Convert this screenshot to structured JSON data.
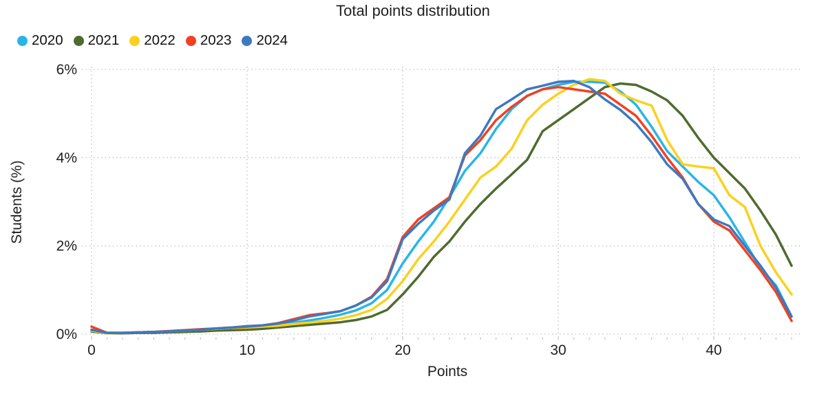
{
  "page": {
    "title": "Total points distribution",
    "background_color": "#ffffff",
    "text_color": "#1f1f1f"
  },
  "chart_data": {
    "type": "line",
    "title": "Total points distribution",
    "xlabel": "Points",
    "ylabel": "Students (%)",
    "xlim": [
      0,
      45
    ],
    "ylim": [
      0,
      6
    ],
    "x_ticks": [
      0,
      10,
      20,
      30,
      40
    ],
    "y_ticks": [
      0,
      2,
      4,
      6
    ],
    "y_tick_labels": [
      "0%",
      "2%",
      "4%",
      "6%"
    ],
    "grid": "dotted",
    "grid_color": "#c4c4c4",
    "legend_position": "top-left",
    "x": [
      0,
      1,
      2,
      3,
      4,
      5,
      6,
      7,
      8,
      9,
      10,
      11,
      12,
      13,
      14,
      15,
      16,
      17,
      18,
      19,
      20,
      21,
      22,
      23,
      24,
      25,
      26,
      27,
      28,
      29,
      30,
      31,
      32,
      33,
      34,
      35,
      36,
      37,
      38,
      39,
      40,
      41,
      42,
      43,
      44,
      45
    ],
    "series": [
      {
        "name": "2020",
        "color": "#29B5E8",
        "values": [
          0.1,
          0.03,
          0.03,
          0.03,
          0.04,
          0.05,
          0.06,
          0.08,
          0.1,
          0.12,
          0.13,
          0.15,
          0.2,
          0.26,
          0.31,
          0.37,
          0.44,
          0.54,
          0.7,
          1.0,
          1.6,
          2.1,
          2.55,
          3.1,
          3.7,
          4.1,
          4.65,
          5.1,
          5.4,
          5.55,
          5.65,
          5.72,
          5.72,
          5.7,
          5.5,
          5.2,
          4.7,
          4.15,
          3.8,
          3.45,
          3.15,
          2.65,
          2.08,
          1.5,
          1.1,
          0.4
        ]
      },
      {
        "name": "2021",
        "color": "#4E6B2F",
        "values": [
          0.06,
          0.02,
          0.02,
          0.03,
          0.03,
          0.04,
          0.05,
          0.06,
          0.08,
          0.09,
          0.1,
          0.12,
          0.15,
          0.18,
          0.21,
          0.24,
          0.27,
          0.32,
          0.4,
          0.55,
          0.9,
          1.3,
          1.75,
          2.1,
          2.55,
          2.95,
          3.3,
          3.62,
          3.95,
          4.6,
          4.85,
          5.1,
          5.35,
          5.6,
          5.68,
          5.65,
          5.5,
          5.3,
          4.95,
          4.45,
          4.0,
          3.65,
          3.3,
          2.8,
          2.25,
          1.55
        ]
      },
      {
        "name": "2022",
        "color": "#FCD01E",
        "values": [
          0.08,
          0.02,
          0.03,
          0.04,
          0.05,
          0.06,
          0.08,
          0.1,
          0.12,
          0.14,
          0.15,
          0.17,
          0.19,
          0.23,
          0.26,
          0.3,
          0.35,
          0.43,
          0.55,
          0.8,
          1.2,
          1.7,
          2.1,
          2.55,
          3.05,
          3.55,
          3.8,
          4.2,
          4.85,
          5.2,
          5.45,
          5.65,
          5.78,
          5.74,
          5.45,
          5.3,
          5.18,
          4.4,
          3.85,
          3.8,
          3.76,
          3.15,
          2.88,
          2.0,
          1.4,
          0.9
        ]
      },
      {
        "name": "2023",
        "color": "#F04122",
        "values": [
          0.17,
          0.03,
          0.03,
          0.04,
          0.05,
          0.07,
          0.09,
          0.11,
          0.13,
          0.15,
          0.17,
          0.2,
          0.25,
          0.34,
          0.43,
          0.47,
          0.52,
          0.65,
          0.85,
          1.25,
          2.2,
          2.6,
          2.85,
          3.1,
          4.05,
          4.4,
          4.85,
          5.15,
          5.4,
          5.55,
          5.6,
          5.55,
          5.5,
          5.45,
          5.2,
          4.95,
          4.5,
          4.0,
          3.55,
          2.95,
          2.55,
          2.35,
          1.9,
          1.45,
          0.95,
          0.3
        ]
      },
      {
        "name": "2024",
        "color": "#3D79BF",
        "values": [
          0.1,
          0.03,
          0.03,
          0.04,
          0.05,
          0.06,
          0.08,
          0.1,
          0.13,
          0.15,
          0.18,
          0.2,
          0.24,
          0.31,
          0.4,
          0.46,
          0.52,
          0.65,
          0.83,
          1.2,
          2.15,
          2.5,
          2.8,
          3.05,
          4.1,
          4.5,
          5.1,
          5.32,
          5.55,
          5.63,
          5.72,
          5.74,
          5.6,
          5.32,
          5.08,
          4.77,
          4.35,
          3.85,
          3.52,
          2.95,
          2.6,
          2.45,
          2.0,
          1.55,
          1.05,
          0.4
        ]
      }
    ]
  }
}
